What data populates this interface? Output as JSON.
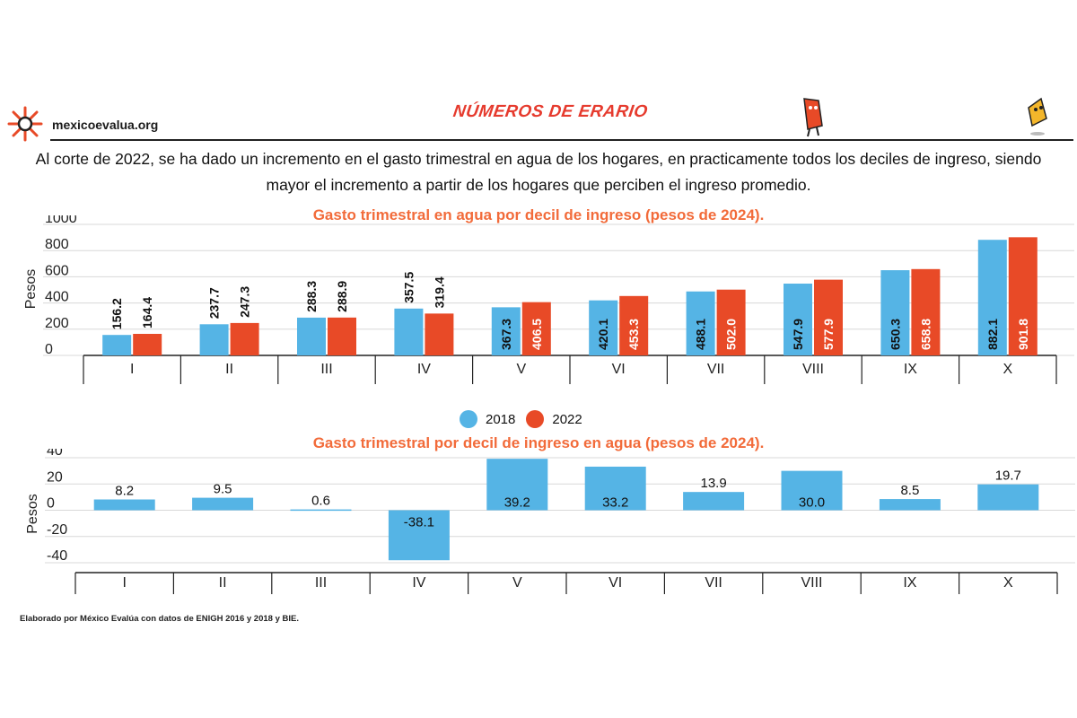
{
  "header": {
    "site_name": "mexicoevalua.org",
    "brand_title": "NÚMEROS DE ERARIO"
  },
  "description": "Al corte de 2022, se ha dado un incremento en el gasto trimestral en agua de los hogares, en practicamente todos los deciles de ingreso, siendo mayor el incremento a partir de los hogares que perciben el ingreso promedio.",
  "legend": [
    {
      "label": "2018",
      "color": "#55b4e5"
    },
    {
      "label": "2022",
      "color": "#e84a27"
    }
  ],
  "source_note": "Elaborado por México Evalúa con datos de ENIGH 2016 y 2018 y BIE.",
  "chart_data": [
    {
      "type": "bar",
      "title": "Gasto trimestral en agua por decil de ingreso (pesos de 2024).",
      "ylabel": "Pesos",
      "ylim": [
        0,
        1000
      ],
      "yticks": [
        0,
        200,
        400,
        600,
        800,
        1000
      ],
      "categories": [
        "I",
        "II",
        "III",
        "IV",
        "V",
        "VI",
        "VII",
        "VIII",
        "IX",
        "X"
      ],
      "series": [
        {
          "name": "2018",
          "color": "#55b4e5",
          "values": [
            156.2,
            237.7,
            288.3,
            357.5,
            367.3,
            420.1,
            488.1,
            547.9,
            650.3,
            882.1
          ]
        },
        {
          "name": "2022",
          "color": "#e84a27",
          "values": [
            164.4,
            247.3,
            288.9,
            319.4,
            406.5,
            453.3,
            502.0,
            577.9,
            658.8,
            901.8
          ]
        }
      ],
      "grid": true
    },
    {
      "type": "bar",
      "title": "Gasto trimestral por decil de ingreso en agua (pesos de 2024).",
      "ylabel": "Pesos",
      "ylim": [
        -40,
        40
      ],
      "yticks": [
        -40,
        -20,
        0,
        20,
        40
      ],
      "categories": [
        "I",
        "II",
        "III",
        "IV",
        "V",
        "VI",
        "VII",
        "VIII",
        "IX",
        "X"
      ],
      "series": [
        {
          "color": "#55b4e5",
          "values": [
            8.2,
            9.5,
            0.6,
            -38.1,
            39.2,
            33.2,
            13.9,
            30.0,
            8.5,
            19.7
          ]
        }
      ],
      "grid": true
    }
  ]
}
